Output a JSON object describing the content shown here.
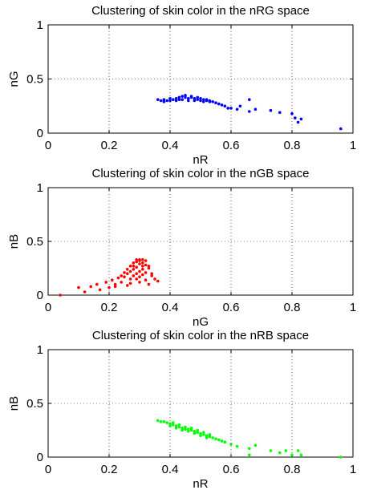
{
  "chart_data": [
    {
      "type": "scatter",
      "title": "Clustering of skin color in the nRG space",
      "xlabel": "nR",
      "ylabel": "nG",
      "xlim": [
        0,
        1
      ],
      "ylim": [
        0,
        1
      ],
      "xticks": [
        "0",
        "0.2",
        "0.4",
        "0.6",
        "0.8",
        "1"
      ],
      "yticks": [
        "0",
        "0.5",
        "1"
      ],
      "grid": "dotted",
      "color": "#0000ff",
      "points": [
        [
          0.36,
          0.31
        ],
        [
          0.37,
          0.3
        ],
        [
          0.38,
          0.31
        ],
        [
          0.39,
          0.3
        ],
        [
          0.4,
          0.3
        ],
        [
          0.41,
          0.31
        ],
        [
          0.42,
          0.32
        ],
        [
          0.43,
          0.33
        ],
        [
          0.44,
          0.34
        ],
        [
          0.45,
          0.33
        ],
        [
          0.46,
          0.32
        ],
        [
          0.47,
          0.33
        ],
        [
          0.48,
          0.32
        ],
        [
          0.49,
          0.31
        ],
        [
          0.5,
          0.3
        ],
        [
          0.51,
          0.31
        ],
        [
          0.52,
          0.3
        ],
        [
          0.53,
          0.29
        ],
        [
          0.54,
          0.29
        ],
        [
          0.55,
          0.28
        ],
        [
          0.42,
          0.3
        ],
        [
          0.44,
          0.31
        ],
        [
          0.46,
          0.3
        ],
        [
          0.48,
          0.3
        ],
        [
          0.5,
          0.32
        ],
        [
          0.52,
          0.31
        ],
        [
          0.45,
          0.35
        ],
        [
          0.47,
          0.34
        ],
        [
          0.49,
          0.33
        ],
        [
          0.43,
          0.31
        ],
        [
          0.38,
          0.29
        ],
        [
          0.4,
          0.32
        ],
        [
          0.51,
          0.29
        ],
        [
          0.53,
          0.3
        ],
        [
          0.56,
          0.27
        ],
        [
          0.57,
          0.26
        ],
        [
          0.58,
          0.25
        ],
        [
          0.59,
          0.23
        ],
        [
          0.6,
          0.23
        ],
        [
          0.62,
          0.22
        ],
        [
          0.63,
          0.25
        ],
        [
          0.66,
          0.2
        ],
        [
          0.66,
          0.31
        ],
        [
          0.68,
          0.22
        ],
        [
          0.73,
          0.21
        ],
        [
          0.76,
          0.19
        ],
        [
          0.8,
          0.18
        ],
        [
          0.81,
          0.14
        ],
        [
          0.82,
          0.1
        ],
        [
          0.83,
          0.13
        ],
        [
          0.96,
          0.04
        ]
      ]
    },
    {
      "type": "scatter",
      "title": "Clustering of skin color in the nGB space",
      "xlabel": "nG",
      "ylabel": "nB",
      "xlim": [
        0,
        1
      ],
      "ylim": [
        0,
        1
      ],
      "xticks": [
        "0",
        "0.2",
        "0.4",
        "0.6",
        "0.8",
        "1"
      ],
      "yticks": [
        "0",
        "0.5",
        "1"
      ],
      "grid": "dotted",
      "color": "#ff0000",
      "points": [
        [
          0.04,
          0.0
        ],
        [
          0.1,
          0.07
        ],
        [
          0.12,
          0.03
        ],
        [
          0.14,
          0.08
        ],
        [
          0.16,
          0.1
        ],
        [
          0.17,
          0.05
        ],
        [
          0.19,
          0.12
        ],
        [
          0.2,
          0.07
        ],
        [
          0.21,
          0.14
        ],
        [
          0.22,
          0.1
        ],
        [
          0.23,
          0.16
        ],
        [
          0.24,
          0.18
        ],
        [
          0.25,
          0.21
        ],
        [
          0.26,
          0.24
        ],
        [
          0.27,
          0.27
        ],
        [
          0.28,
          0.3
        ],
        [
          0.29,
          0.33
        ],
        [
          0.3,
          0.32
        ],
        [
          0.31,
          0.3
        ],
        [
          0.32,
          0.28
        ],
        [
          0.33,
          0.25
        ],
        [
          0.34,
          0.2
        ],
        [
          0.35,
          0.15
        ],
        [
          0.29,
          0.2
        ],
        [
          0.3,
          0.22
        ],
        [
          0.31,
          0.24
        ],
        [
          0.28,
          0.18
        ],
        [
          0.27,
          0.15
        ],
        [
          0.3,
          0.12
        ],
        [
          0.32,
          0.14
        ],
        [
          0.33,
          0.1
        ],
        [
          0.29,
          0.26
        ],
        [
          0.31,
          0.27
        ],
        [
          0.3,
          0.29
        ],
        [
          0.28,
          0.24
        ],
        [
          0.26,
          0.2
        ],
        [
          0.25,
          0.17
        ],
        [
          0.27,
          0.22
        ],
        [
          0.32,
          0.21
        ],
        [
          0.34,
          0.18
        ],
        [
          0.3,
          0.17
        ],
        [
          0.29,
          0.15
        ],
        [
          0.31,
          0.19
        ],
        [
          0.28,
          0.27
        ],
        [
          0.33,
          0.27
        ],
        [
          0.3,
          0.33
        ],
        [
          0.29,
          0.31
        ],
        [
          0.31,
          0.33
        ],
        [
          0.32,
          0.32
        ],
        [
          0.24,
          0.12
        ],
        [
          0.22,
          0.08
        ],
        [
          0.36,
          0.13
        ],
        [
          0.27,
          0.11
        ],
        [
          0.26,
          0.09
        ]
      ]
    },
    {
      "type": "scatter",
      "title": "Clustering of skin color in the nRB space",
      "xlabel": "nR",
      "ylabel": "nB",
      "xlim": [
        0,
        1
      ],
      "ylim": [
        0,
        1
      ],
      "xticks": [
        "0",
        "0.2",
        "0.4",
        "0.6",
        "0.8",
        "1"
      ],
      "yticks": [
        "0",
        "0.5",
        "1"
      ],
      "grid": "dotted",
      "color": "#00ff00",
      "points": [
        [
          0.36,
          0.34
        ],
        [
          0.37,
          0.33
        ],
        [
          0.38,
          0.33
        ],
        [
          0.39,
          0.32
        ],
        [
          0.4,
          0.31
        ],
        [
          0.41,
          0.3
        ],
        [
          0.42,
          0.29
        ],
        [
          0.43,
          0.28
        ],
        [
          0.44,
          0.27
        ],
        [
          0.45,
          0.26
        ],
        [
          0.46,
          0.26
        ],
        [
          0.47,
          0.25
        ],
        [
          0.48,
          0.24
        ],
        [
          0.49,
          0.23
        ],
        [
          0.5,
          0.22
        ],
        [
          0.51,
          0.21
        ],
        [
          0.52,
          0.2
        ],
        [
          0.53,
          0.19
        ],
        [
          0.54,
          0.18
        ],
        [
          0.55,
          0.17
        ],
        [
          0.4,
          0.29
        ],
        [
          0.42,
          0.27
        ],
        [
          0.44,
          0.25
        ],
        [
          0.46,
          0.24
        ],
        [
          0.48,
          0.22
        ],
        [
          0.5,
          0.2
        ],
        [
          0.52,
          0.18
        ],
        [
          0.45,
          0.28
        ],
        [
          0.47,
          0.27
        ],
        [
          0.49,
          0.25
        ],
        [
          0.43,
          0.3
        ],
        [
          0.41,
          0.32
        ],
        [
          0.51,
          0.23
        ],
        [
          0.53,
          0.21
        ],
        [
          0.56,
          0.16
        ],
        [
          0.57,
          0.15
        ],
        [
          0.58,
          0.14
        ],
        [
          0.6,
          0.12
        ],
        [
          0.62,
          0.1
        ],
        [
          0.66,
          0.08
        ],
        [
          0.66,
          0.02
        ],
        [
          0.68,
          0.11
        ],
        [
          0.73,
          0.06
        ],
        [
          0.76,
          0.04
        ],
        [
          0.78,
          0.06
        ],
        [
          0.8,
          0.02
        ],
        [
          0.82,
          0.06
        ],
        [
          0.83,
          0.02
        ],
        [
          0.96,
          0.0
        ]
      ]
    }
  ]
}
